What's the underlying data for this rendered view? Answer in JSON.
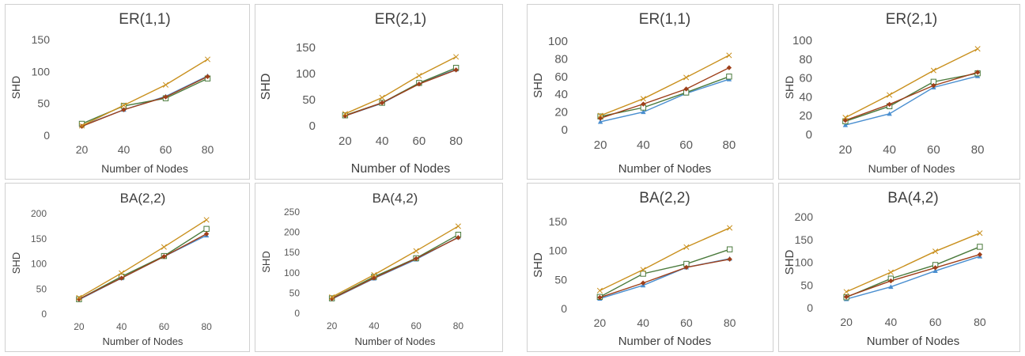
{
  "colors": {
    "s1": "#4a8fd0",
    "s2": "#4a7a3c",
    "s3": "#9e3f1a",
    "s4": "#c9901e",
    "gridline": "#e0e0e0",
    "border": "#d0d0d0"
  },
  "chart_data": [
    {
      "type": "line",
      "title": "ER(1,1)",
      "xlabel": "Number of Nodes",
      "ylabel": "SHD",
      "categories": [
        "20",
        "40",
        "60",
        "80"
      ],
      "yticks": [
        0,
        50,
        100,
        150
      ],
      "ylim": [
        0,
        150
      ],
      "grid": false,
      "series": [
        {
          "values": [
            15,
            40,
            61,
            93
          ],
          "color": "#4a8fd0",
          "marker": "triangle"
        },
        {
          "values": [
            18,
            46,
            58,
            89
          ],
          "color": "#4a7a3c",
          "marker": "square"
        },
        {
          "values": [
            14,
            40,
            60,
            92
          ],
          "color": "#9e3f1a",
          "marker": "diamond"
        },
        {
          "values": [
            15,
            47,
            79,
            119
          ],
          "color": "#c9901e",
          "marker": "x"
        }
      ]
    },
    {
      "type": "line",
      "title": "ER(2,1)",
      "xlabel": "Number of Nodes",
      "ylabel": "SHD",
      "categories": [
        "20",
        "40",
        "60",
        "80"
      ],
      "yticks": [
        0,
        50,
        100,
        150
      ],
      "ylim": [
        0,
        150
      ],
      "grid": false,
      "series": [
        {
          "values": [
            19,
            43,
            81,
            108
          ],
          "color": "#4a8fd0",
          "marker": "triangle"
        },
        {
          "values": [
            20,
            44,
            82,
            111
          ],
          "color": "#4a7a3c",
          "marker": "square"
        },
        {
          "values": [
            19,
            44,
            80,
            107
          ],
          "color": "#9e3f1a",
          "marker": "diamond"
        },
        {
          "values": [
            23,
            54,
            96,
            132
          ],
          "color": "#c9901e",
          "marker": "x"
        }
      ]
    },
    {
      "type": "line",
      "title": "ER(1,1)",
      "xlabel": "Number of Nodes",
      "ylabel": "SHD",
      "categories": [
        "20",
        "40",
        "60",
        "80"
      ],
      "yticks": [
        0,
        20,
        40,
        60,
        80,
        100
      ],
      "ylim": [
        0,
        100
      ],
      "grid": false,
      "series": [
        {
          "values": [
            9,
            20,
            41,
            57
          ],
          "color": "#4a8fd0",
          "marker": "triangle"
        },
        {
          "values": [
            15,
            25,
            42,
            60
          ],
          "color": "#4a7a3c",
          "marker": "square"
        },
        {
          "values": [
            13,
            29,
            46,
            70
          ],
          "color": "#9e3f1a",
          "marker": "diamond"
        },
        {
          "values": [
            16,
            35,
            59,
            84
          ],
          "color": "#c9901e",
          "marker": "x"
        }
      ]
    },
    {
      "type": "line",
      "title": "ER(2,1)",
      "xlabel": "Number of Nodes",
      "ylabel": "SHD",
      "categories": [
        "20",
        "40",
        "60",
        "80"
      ],
      "yticks": [
        0,
        20,
        40,
        60,
        80,
        100
      ],
      "ylim": [
        0,
        100
      ],
      "grid": false,
      "series": [
        {
          "values": [
            10,
            22,
            50,
            62
          ],
          "color": "#4a8fd0",
          "marker": "triangle"
        },
        {
          "values": [
            14,
            30,
            56,
            65
          ],
          "color": "#4a7a3c",
          "marker": "square"
        },
        {
          "values": [
            15,
            32,
            52,
            66
          ],
          "color": "#9e3f1a",
          "marker": "diamond"
        },
        {
          "values": [
            18,
            42,
            68,
            91
          ],
          "color": "#c9901e",
          "marker": "x"
        }
      ]
    },
    {
      "type": "line",
      "title": "BA(2,2)",
      "xlabel": "Number of Nodes",
      "ylabel": "SHD",
      "categories": [
        "20",
        "40",
        "60",
        "80"
      ],
      "yticks": [
        0,
        50,
        100,
        150,
        200
      ],
      "ylim": [
        0,
        200
      ],
      "grid": false,
      "series": [
        {
          "values": [
            27,
            70,
            113,
            155
          ],
          "color": "#4a8fd0",
          "marker": "triangle"
        },
        {
          "values": [
            28,
            73,
            114,
            168
          ],
          "color": "#4a7a3c",
          "marker": "square"
        },
        {
          "values": [
            28,
            70,
            113,
            158
          ],
          "color": "#9e3f1a",
          "marker": "diamond"
        },
        {
          "values": [
            31,
            80,
            132,
            186
          ],
          "color": "#c9901e",
          "marker": "x"
        }
      ]
    },
    {
      "type": "line",
      "title": "BA(4,2)",
      "xlabel": "Number of Nodes",
      "ylabel": "SHD",
      "categories": [
        "20",
        "40",
        "60",
        "80"
      ],
      "yticks": [
        0,
        50,
        100,
        150,
        200,
        250
      ],
      "ylim": [
        0,
        250
      ],
      "grid": false,
      "series": [
        {
          "values": [
            33,
            84,
            131,
            186
          ],
          "color": "#4a8fd0",
          "marker": "triangle"
        },
        {
          "values": [
            35,
            88,
            134,
            192
          ],
          "color": "#4a7a3c",
          "marker": "square"
        },
        {
          "values": [
            34,
            85,
            133,
            185
          ],
          "color": "#9e3f1a",
          "marker": "diamond"
        },
        {
          "values": [
            38,
            93,
            152,
            213
          ],
          "color": "#c9901e",
          "marker": "x"
        }
      ]
    },
    {
      "type": "line",
      "title": "BA(2,2)",
      "xlabel": "Number of Nodes",
      "ylabel": "SHD",
      "categories": [
        "20",
        "40",
        "60",
        "80"
      ],
      "yticks": [
        0,
        50,
        100,
        150
      ],
      "ylim": [
        0,
        150
      ],
      "grid": false,
      "series": [
        {
          "values": [
            17,
            40,
            71,
            86
          ],
          "color": "#4a8fd0",
          "marker": "triangle"
        },
        {
          "values": [
            20,
            60,
            77,
            102
          ],
          "color": "#4a7a3c",
          "marker": "square"
        },
        {
          "values": [
            19,
            44,
            71,
            85
          ],
          "color": "#9e3f1a",
          "marker": "diamond"
        },
        {
          "values": [
            31,
            67,
            106,
            139
          ],
          "color": "#c9901e",
          "marker": "x"
        }
      ]
    },
    {
      "type": "line",
      "title": "BA(4,2)",
      "xlabel": "Number of Nodes",
      "ylabel": "SHD",
      "categories": [
        "20",
        "40",
        "60",
        "80"
      ],
      "yticks": [
        0,
        50,
        100,
        150,
        200
      ],
      "ylim": [
        0,
        200
      ],
      "grid": false,
      "series": [
        {
          "values": [
            19,
            46,
            81,
            113
          ],
          "color": "#4a8fd0",
          "marker": "triangle"
        },
        {
          "values": [
            23,
            64,
            94,
            134
          ],
          "color": "#4a7a3c",
          "marker": "square"
        },
        {
          "values": [
            24,
            59,
            88,
            117
          ],
          "color": "#9e3f1a",
          "marker": "diamond"
        },
        {
          "values": [
            35,
            78,
            124,
            164
          ],
          "color": "#c9901e",
          "marker": "x"
        }
      ]
    }
  ]
}
